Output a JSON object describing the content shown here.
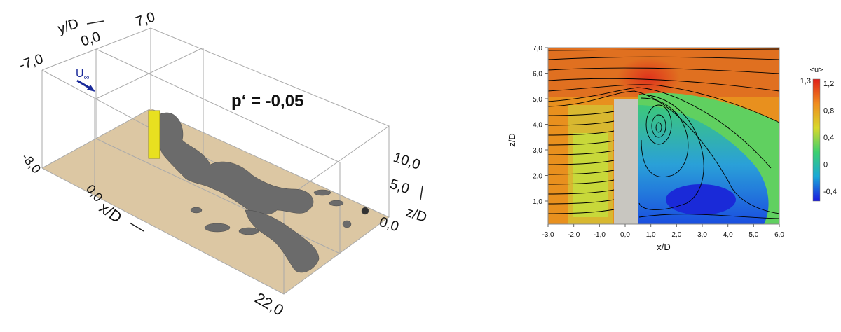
{
  "left_panel": {
    "y_axis": {
      "label": "y/D",
      "ticks": [
        "-7,0",
        "0,0",
        "7,0"
      ]
    },
    "inflow_label": "U",
    "inflow_subscript": "∞",
    "annotation": "p‘ = -0,05",
    "z_axis": {
      "label": "z/D",
      "ticks": [
        "10,0",
        "5,0",
        "0,0"
      ]
    },
    "x_axis": {
      "label": "x/D",
      "ticks": [
        "-8,0",
        "0,0",
        "22,0"
      ]
    }
  },
  "right_panel": {
    "y_axis": {
      "label": "z/D",
      "ticks": [
        "7,0",
        "6,0",
        "5,0",
        "4,0",
        "3,0",
        "2,0",
        "1,0"
      ]
    },
    "x_axis": {
      "label": "x/D",
      "ticks": [
        "-3,0",
        "-2,0",
        "-1,0",
        "0,0",
        "1,0",
        "2,0",
        "3,0",
        "4,0",
        "5,0",
        "6,0"
      ]
    },
    "colorbar": {
      "label": "<u>",
      "max_label": "1,3",
      "ticks": [
        "1,2",
        "0,8",
        "0,4",
        "0",
        "-0,4"
      ]
    }
  }
}
